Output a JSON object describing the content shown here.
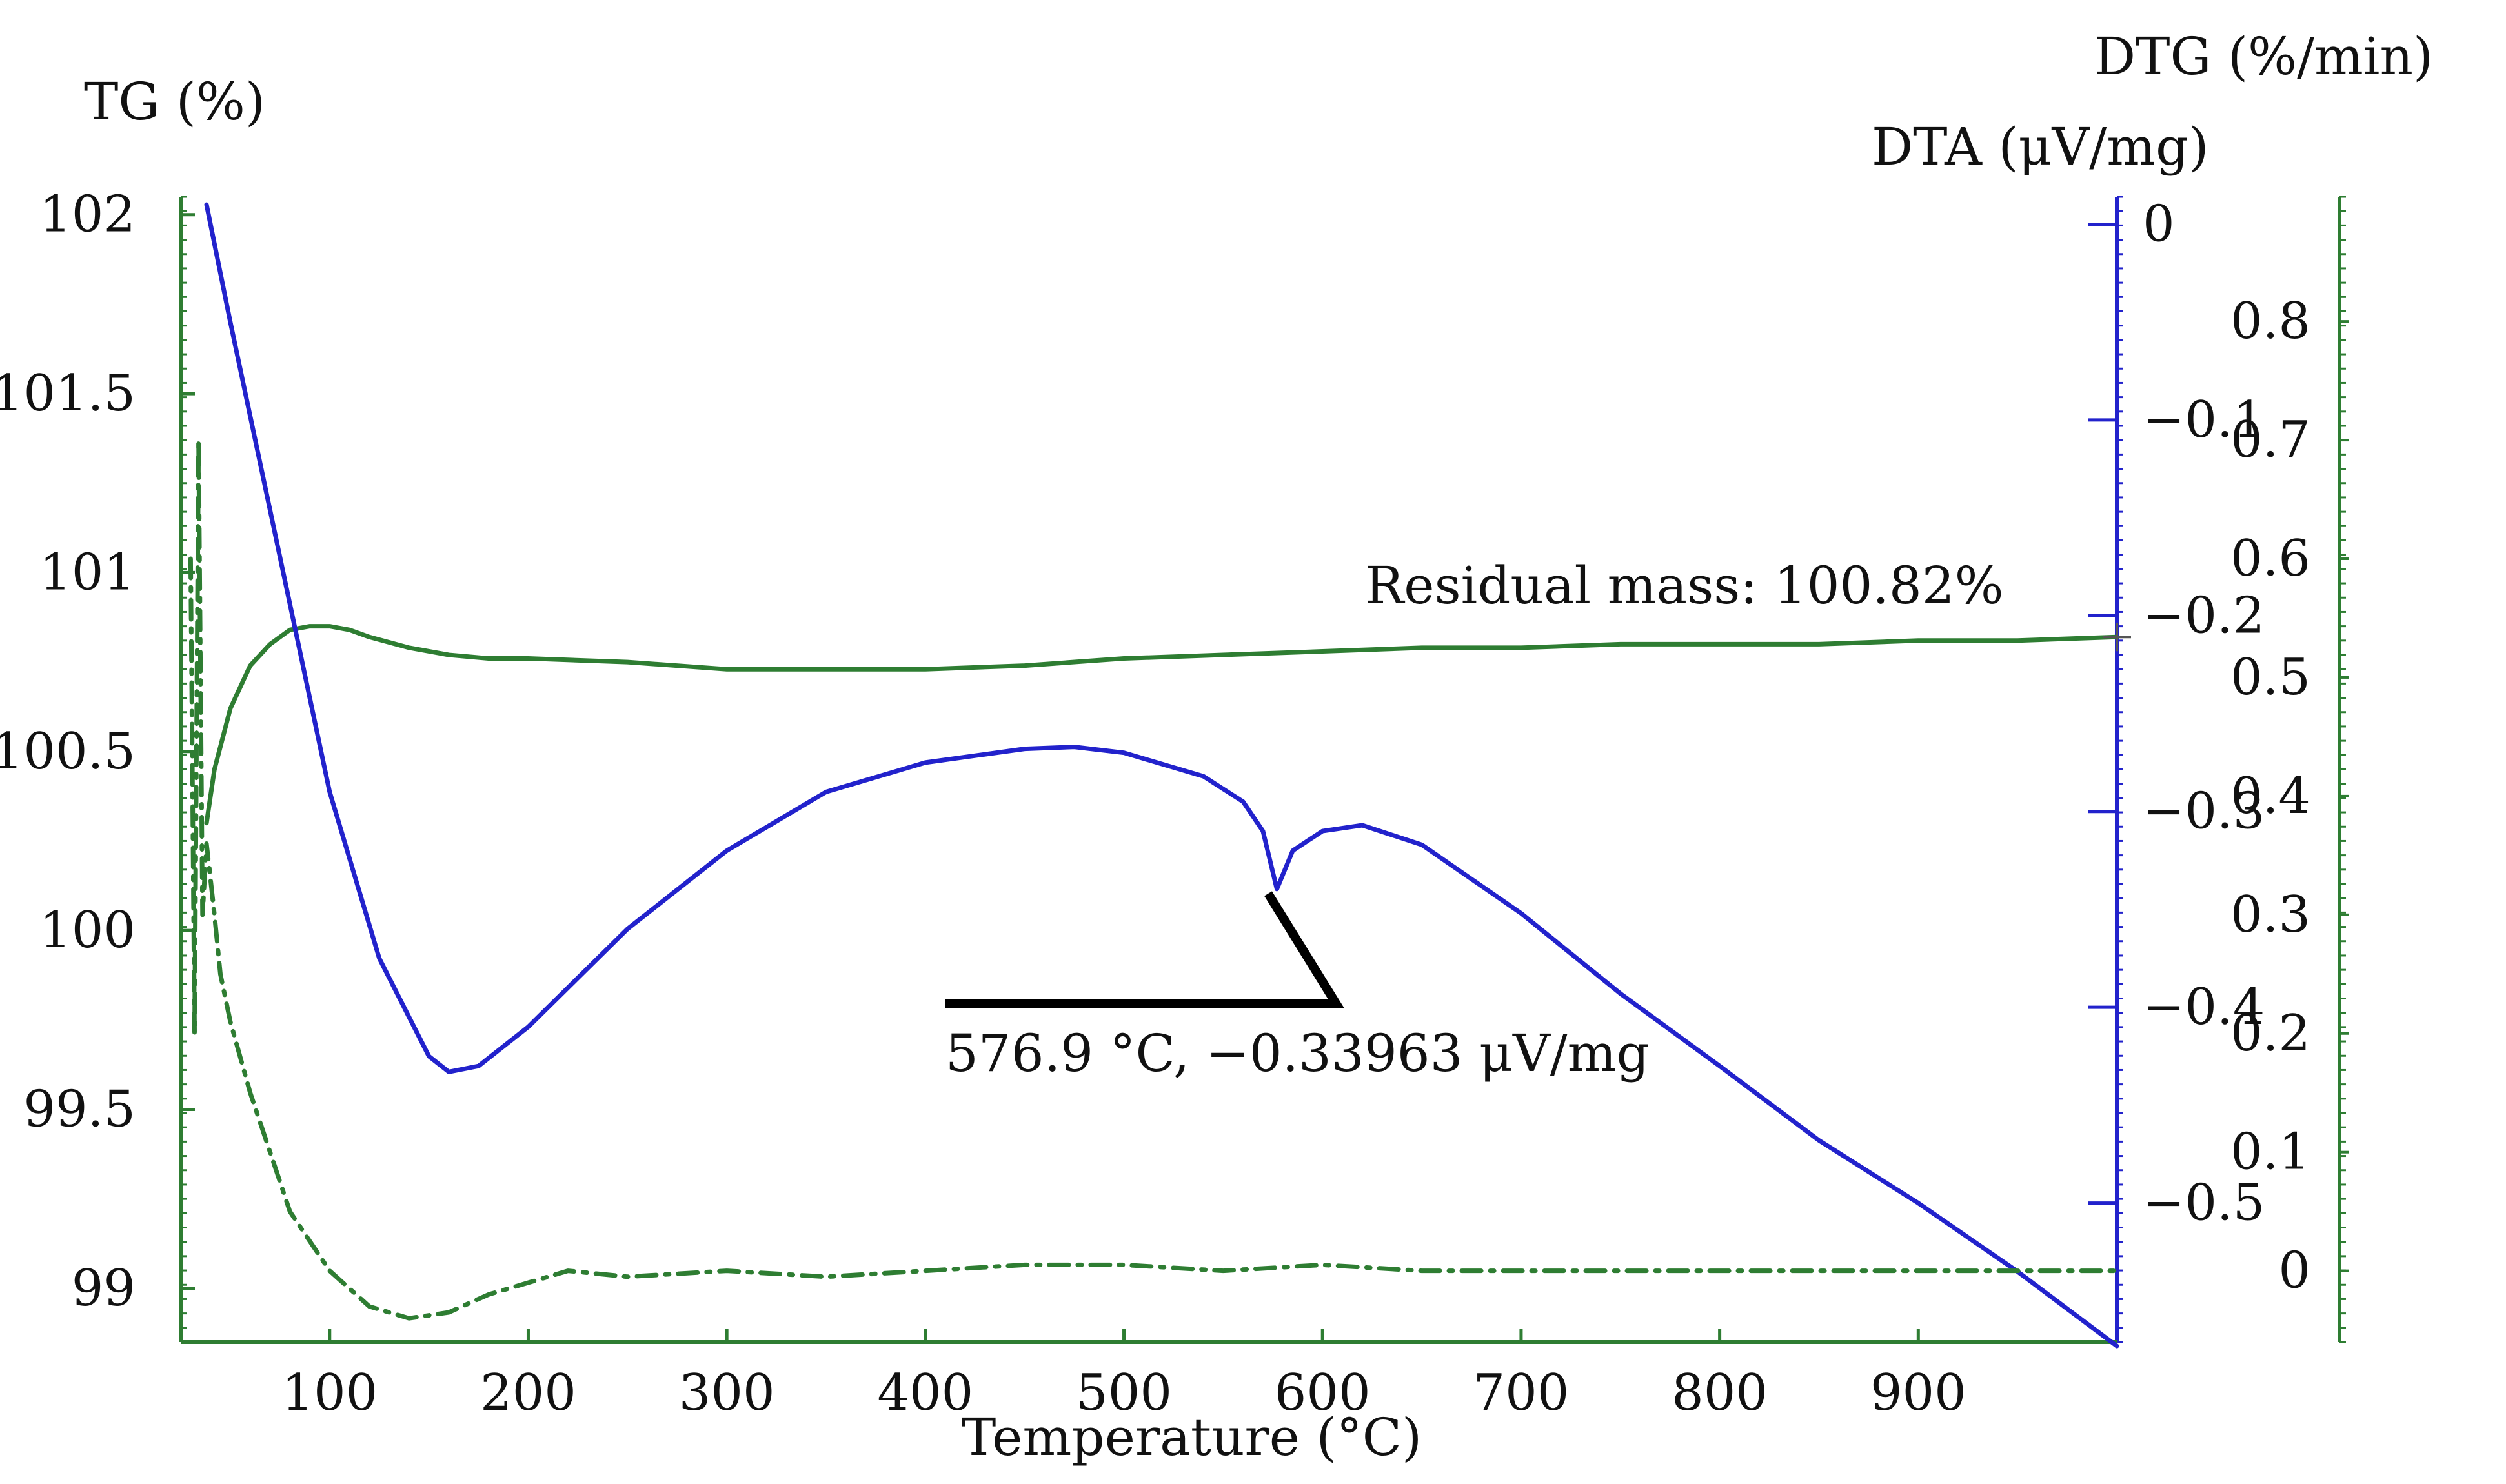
{
  "chart_data": {
    "type": "line",
    "title": "",
    "xlabel": "Temperature (°C)",
    "xlim": [
      25,
      1000
    ],
    "x_ticks": [
      100,
      200,
      300,
      400,
      500,
      600,
      700,
      800,
      900
    ],
    "axes": {
      "tg": {
        "label": "TG (%)",
        "ylim": [
          98.85,
          102.05
        ],
        "ticks": [
          102,
          101.5,
          101,
          100.5,
          100,
          99.5,
          99
        ],
        "tick_labels": [
          "102",
          "101.5",
          "101",
          "100.5",
          "100",
          "99.5",
          "99"
        ],
        "color": "#2e7d32"
      },
      "dta": {
        "label": "DTA (μV/mg)",
        "ylim": [
          -0.571,
          0.014
        ],
        "ticks": [
          0,
          -0.1,
          -0.2,
          -0.3,
          -0.4,
          -0.5
        ],
        "tick_labels": [
          "0",
          "−0.1",
          "−0.2",
          "−0.3",
          "−0.4",
          "−0.5"
        ],
        "color": "#2222cc"
      },
      "dtg": {
        "label": "DTG (%/min)",
        "ylim": [
          -0.06,
          0.905
        ],
        "ticks": [
          0.8,
          0.7,
          0.6,
          0.5,
          0.4,
          0.3,
          0.2,
          0.1,
          0
        ],
        "tick_labels": [
          "0.8",
          "0.7",
          "0.6",
          "0.5",
          "0.4",
          "0.3",
          "0.2",
          "0.1",
          "0"
        ],
        "color": "#2e7d32"
      }
    },
    "series": [
      {
        "name": "TG",
        "axis": "tg",
        "color": "#2e7d32",
        "style": "solid",
        "x": [
          38,
          42,
          50,
          60,
          70,
          80,
          90,
          100,
          110,
          120,
          140,
          160,
          180,
          200,
          250,
          300,
          350,
          400,
          450,
          500,
          550,
          600,
          650,
          700,
          750,
          800,
          850,
          900,
          950,
          1000
        ],
        "y": [
          100.3,
          100.45,
          100.62,
          100.74,
          100.8,
          100.84,
          100.85,
          100.85,
          100.84,
          100.82,
          100.79,
          100.77,
          100.76,
          100.76,
          100.75,
          100.73,
          100.73,
          100.73,
          100.74,
          100.76,
          100.77,
          100.78,
          100.79,
          100.79,
          100.8,
          100.8,
          100.8,
          100.81,
          100.81,
          100.82
        ]
      },
      {
        "name": "DTA",
        "axis": "dta",
        "color": "#2222cc",
        "style": "solid",
        "x": [
          38,
          50,
          75,
          100,
          125,
          150,
          160,
          175,
          200,
          250,
          300,
          350,
          400,
          450,
          475,
          500,
          540,
          560,
          570,
          577,
          585,
          600,
          620,
          650,
          700,
          750,
          800,
          850,
          900,
          950,
          1000
        ],
        "y": [
          0.01,
          -0.05,
          -0.17,
          -0.29,
          -0.375,
          -0.425,
          -0.433,
          -0.43,
          -0.41,
          -0.36,
          -0.32,
          -0.29,
          -0.275,
          -0.268,
          -0.267,
          -0.27,
          -0.282,
          -0.295,
          -0.31,
          -0.3396,
          -0.32,
          -0.31,
          -0.307,
          -0.317,
          -0.352,
          -0.393,
          -0.43,
          -0.468,
          -0.5,
          -0.535,
          -0.573
        ]
      },
      {
        "name": "DTG",
        "axis": "dtg",
        "color": "#2e7d32",
        "style": "dashdot",
        "x": [
          30,
          32,
          34,
          36,
          38,
          40,
          42,
          45,
          50,
          60,
          70,
          80,
          100,
          120,
          140,
          160,
          180,
          200,
          220,
          250,
          300,
          350,
          400,
          450,
          500,
          550,
          600,
          650,
          700,
          750,
          800,
          850,
          900,
          950,
          1000
        ],
        "y": [
          0.6,
          0.2,
          0.7,
          0.3,
          0.36,
          0.33,
          0.3,
          0.25,
          0.21,
          0.15,
          0.1,
          0.05,
          0.0,
          -0.03,
          -0.04,
          -0.035,
          -0.02,
          -0.01,
          0.0,
          -0.005,
          0.0,
          -0.005,
          0.0,
          0.005,
          0.005,
          0.0,
          0.005,
          0.0,
          0.0,
          0.0,
          0.0,
          0.0,
          0.0,
          0.0,
          0.0
        ]
      }
    ],
    "annotations": [
      {
        "text": "Residual mass: 100.82%",
        "x": 1000,
        "y": 100.82,
        "axis": "tg"
      },
      {
        "text": "576.9 °C, −0.33963 μV/mg",
        "x": 576.9,
        "y": -0.33963,
        "axis": "dta"
      }
    ]
  }
}
